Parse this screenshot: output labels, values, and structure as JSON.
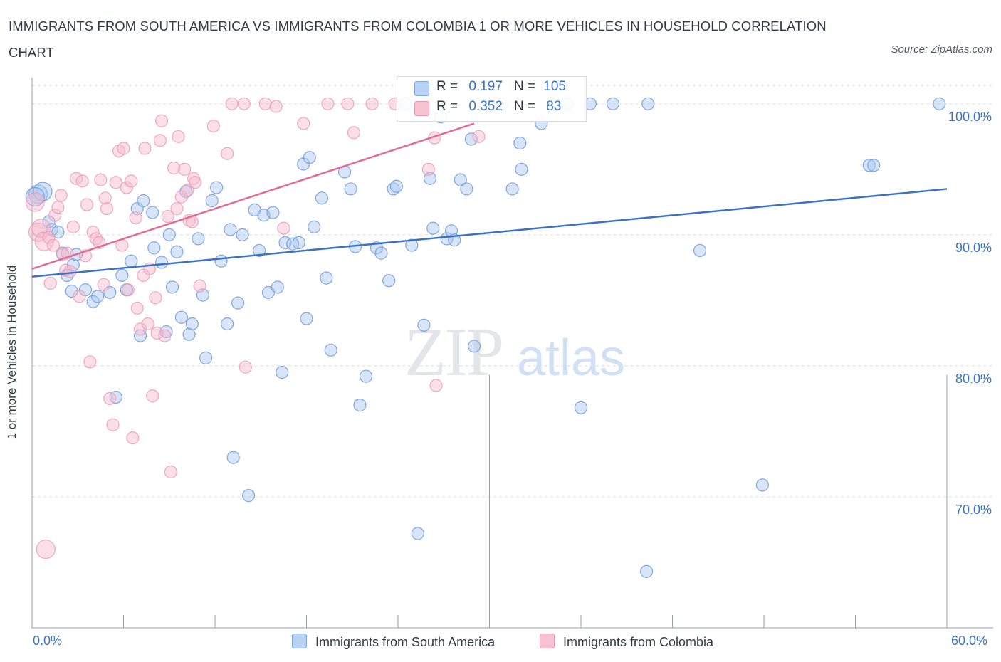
{
  "title": "IMMIGRANTS FROM SOUTH AMERICA VS IMMIGRANTS FROM COLOMBIA 1 OR MORE VEHICLES IN HOUSEHOLD CORRELATION CHART",
  "source": "Source: ZipAtlas.com",
  "watermark": {
    "zip": "ZIP",
    "atlas": "atlas"
  },
  "colors": {
    "blue": "#3b73c4",
    "blue_fill": "#a9c6f0",
    "pink": "#e26b96",
    "pink_fill": "#f5b8cb",
    "grid": "#d7dbe2"
  },
  "legend": {
    "rows": [
      {
        "r_label": "R = ",
        "r_value": "0.197",
        "n_label": "N = ",
        "n_value": "105"
      },
      {
        "r_label": "R = ",
        "r_value": "0.352",
        "n_label": "N = ",
        "n_value": "83"
      }
    ]
  },
  "chart_data": {
    "type": "scatter",
    "title": "IMMIGRANTS FROM SOUTH AMERICA VS IMMIGRANTS FROM COLOMBIA 1 OR MORE VEHICLES IN HOUSEHOLD CORRELATION CHART",
    "xlabel": "",
    "ylabel": "1 or more Vehicles in Household",
    "xlim": [
      0,
      60
    ],
    "ylim": [
      60,
      102
    ],
    "x_ticks": [
      0,
      6,
      12,
      18,
      24,
      30,
      36,
      42,
      48,
      54,
      60
    ],
    "x_tick_labels": [
      "0.0%",
      "60.0%"
    ],
    "y_ticks": [
      70,
      80,
      90,
      100
    ],
    "y_tick_labels": [
      "70.0%",
      "80.0%",
      "90.0%",
      "100.0%"
    ],
    "grid": true,
    "legend_position": "bottom",
    "series": [
      {
        "name": "Immigrants from South America",
        "color": "#3b73c4",
        "trend": {
          "x": [
            0,
            60
          ],
          "y": [
            86.8,
            93.5
          ]
        },
        "points": [
          [
            0.4,
            93.1
          ],
          [
            0.7,
            93.3
          ],
          [
            1.1,
            91.0
          ],
          [
            1.3,
            90.4
          ],
          [
            1.7,
            90.2
          ],
          [
            2.0,
            88.6
          ],
          [
            2.3,
            86.9
          ],
          [
            2.7,
            87.7
          ],
          [
            2.9,
            88.5
          ],
          [
            3.5,
            85.8
          ],
          [
            2.6,
            85.7
          ],
          [
            4.0,
            84.9
          ],
          [
            4.3,
            85.3
          ],
          [
            5.1,
            85.6
          ],
          [
            5.5,
            77.6
          ],
          [
            5.9,
            86.9
          ],
          [
            6.2,
            85.8
          ],
          [
            6.5,
            88.0
          ],
          [
            6.9,
            92.0
          ],
          [
            7.3,
            92.6
          ],
          [
            7.1,
            82.3
          ],
          [
            7.9,
            91.7
          ],
          [
            8.0,
            89.0
          ],
          [
            8.5,
            87.9
          ],
          [
            8.8,
            82.6
          ],
          [
            9.0,
            90.0
          ],
          [
            9.2,
            86.0
          ],
          [
            9.5,
            88.7
          ],
          [
            9.8,
            83.7
          ],
          [
            10.1,
            93.3
          ],
          [
            10.3,
            82.4
          ],
          [
            10.5,
            83.2
          ],
          [
            10.9,
            89.7
          ],
          [
            11.2,
            85.4
          ],
          [
            11.4,
            80.6
          ],
          [
            11.8,
            92.6
          ],
          [
            12.1,
            93.6
          ],
          [
            12.4,
            88.0
          ],
          [
            12.8,
            83.2
          ],
          [
            13.0,
            90.4
          ],
          [
            13.5,
            84.8
          ],
          [
            13.8,
            90.0
          ],
          [
            13.2,
            73.0
          ],
          [
            14.2,
            70.1
          ],
          [
            14.6,
            91.9
          ],
          [
            14.9,
            88.8
          ],
          [
            15.2,
            91.5
          ],
          [
            15.5,
            85.6
          ],
          [
            15.8,
            91.7
          ],
          [
            16.1,
            86.0
          ],
          [
            16.4,
            79.5
          ],
          [
            16.6,
            89.4
          ],
          [
            17.1,
            89.3
          ],
          [
            17.5,
            89.4
          ],
          [
            17.8,
            95.4
          ],
          [
            18.0,
            83.6
          ],
          [
            18.2,
            95.9
          ],
          [
            18.5,
            90.6
          ],
          [
            19.0,
            92.8
          ],
          [
            19.3,
            86.7
          ],
          [
            19.6,
            81.2
          ],
          [
            20.5,
            94.8
          ],
          [
            20.9,
            93.5
          ],
          [
            21.2,
            89.1
          ],
          [
            21.5,
            77.0
          ],
          [
            21.9,
            79.2
          ],
          [
            22.6,
            89.0
          ],
          [
            22.9,
            88.6
          ],
          [
            23.4,
            86.5
          ],
          [
            23.7,
            93.5
          ],
          [
            23.9,
            93.7
          ],
          [
            24.5,
            100.0
          ],
          [
            24.9,
            89.2
          ],
          [
            25.3,
            67.2
          ],
          [
            25.7,
            83.1
          ],
          [
            26.1,
            94.3
          ],
          [
            26.3,
            90.5
          ],
          [
            26.8,
            99.0
          ],
          [
            27.2,
            89.7
          ],
          [
            27.5,
            90.3
          ],
          [
            27.7,
            89.6
          ],
          [
            28.1,
            94.2
          ],
          [
            28.5,
            93.5
          ],
          [
            29.0,
            81.5
          ],
          [
            28.8,
            97.3
          ],
          [
            29.9,
            100.0
          ],
          [
            30.8,
            100.0
          ],
          [
            31.5,
            93.5
          ],
          [
            32.0,
            97.0
          ],
          [
            32.1,
            95.0
          ],
          [
            33.4,
            98.5
          ],
          [
            35.1,
            100.0
          ],
          [
            34.2,
            100.0
          ],
          [
            36.0,
            76.8
          ],
          [
            36.6,
            100.0
          ],
          [
            38.1,
            100.0
          ],
          [
            40.3,
            64.3
          ],
          [
            40.4,
            100.0
          ],
          [
            43.8,
            88.8
          ],
          [
            47.9,
            70.9
          ],
          [
            54.9,
            95.3
          ],
          [
            55.2,
            95.3
          ],
          [
            59.5,
            100.0
          ],
          [
            0.2,
            92.9
          ]
        ]
      },
      {
        "name": "Immigrants from Colombia",
        "color": "#e26b96",
        "trend": {
          "x": [
            0,
            29
          ],
          "y": [
            87.4,
            98.5
          ]
        },
        "points": [
          [
            0.2,
            92.5
          ],
          [
            0.4,
            90.2
          ],
          [
            0.6,
            90.5
          ],
          [
            0.8,
            89.5
          ],
          [
            0.9,
            66.0
          ],
          [
            1.1,
            89.8
          ],
          [
            1.2,
            86.3
          ],
          [
            1.4,
            89.2
          ],
          [
            1.5,
            91.5
          ],
          [
            1.7,
            92.1
          ],
          [
            1.9,
            93.0
          ],
          [
            2.0,
            88.5
          ],
          [
            2.2,
            87.3
          ],
          [
            2.3,
            88.6
          ],
          [
            2.5,
            87.2
          ],
          [
            2.7,
            90.6
          ],
          [
            2.9,
            94.3
          ],
          [
            3.1,
            85.3
          ],
          [
            3.3,
            94.1
          ],
          [
            3.5,
            88.4
          ],
          [
            3.6,
            92.3
          ],
          [
            3.8,
            80.3
          ],
          [
            4.0,
            90.2
          ],
          [
            4.2,
            89.7
          ],
          [
            4.4,
            89.4
          ],
          [
            4.5,
            94.2
          ],
          [
            4.7,
            86.2
          ],
          [
            4.8,
            92.8
          ],
          [
            4.9,
            92.0
          ],
          [
            5.1,
            77.5
          ],
          [
            5.3,
            75.5
          ],
          [
            5.5,
            94.0
          ],
          [
            5.7,
            96.4
          ],
          [
            5.9,
            89.2
          ],
          [
            6.0,
            96.6
          ],
          [
            6.2,
            93.6
          ],
          [
            6.3,
            85.8
          ],
          [
            6.5,
            94.1
          ],
          [
            6.6,
            74.5
          ],
          [
            6.8,
            91.3
          ],
          [
            6.9,
            84.4
          ],
          [
            7.1,
            82.8
          ],
          [
            7.3,
            86.9
          ],
          [
            7.4,
            96.6
          ],
          [
            7.6,
            83.2
          ],
          [
            7.7,
            87.4
          ],
          [
            7.9,
            77.7
          ],
          [
            8.1,
            85.2
          ],
          [
            8.2,
            82.5
          ],
          [
            8.4,
            97.2
          ],
          [
            8.5,
            98.7
          ],
          [
            8.7,
            82.3
          ],
          [
            8.9,
            91.4
          ],
          [
            9.1,
            71.9
          ],
          [
            9.3,
            95.1
          ],
          [
            9.5,
            92.0
          ],
          [
            9.6,
            97.5
          ],
          [
            9.8,
            92.9
          ],
          [
            10.0,
            95.0
          ],
          [
            10.2,
            93.4
          ],
          [
            10.3,
            91.1
          ],
          [
            10.5,
            91.0
          ],
          [
            10.6,
            94.3
          ],
          [
            10.7,
            94.0
          ],
          [
            11.0,
            86.1
          ],
          [
            11.9,
            98.3
          ],
          [
            12.8,
            96.2
          ],
          [
            13.1,
            100.0
          ],
          [
            13.9,
            100.0
          ],
          [
            14.0,
            79.9
          ],
          [
            15.3,
            100.0
          ],
          [
            16.0,
            99.8
          ],
          [
            16.5,
            90.5
          ],
          [
            17.8,
            98.5
          ],
          [
            19.4,
            100.0
          ],
          [
            20.7,
            100.0
          ],
          [
            21.1,
            97.8
          ],
          [
            22.3,
            100.0
          ],
          [
            23.8,
            100.0
          ],
          [
            26.0,
            95.0
          ],
          [
            26.4,
            97.4
          ],
          [
            29.3,
            97.5
          ],
          [
            26.5,
            78.5
          ]
        ]
      }
    ]
  }
}
